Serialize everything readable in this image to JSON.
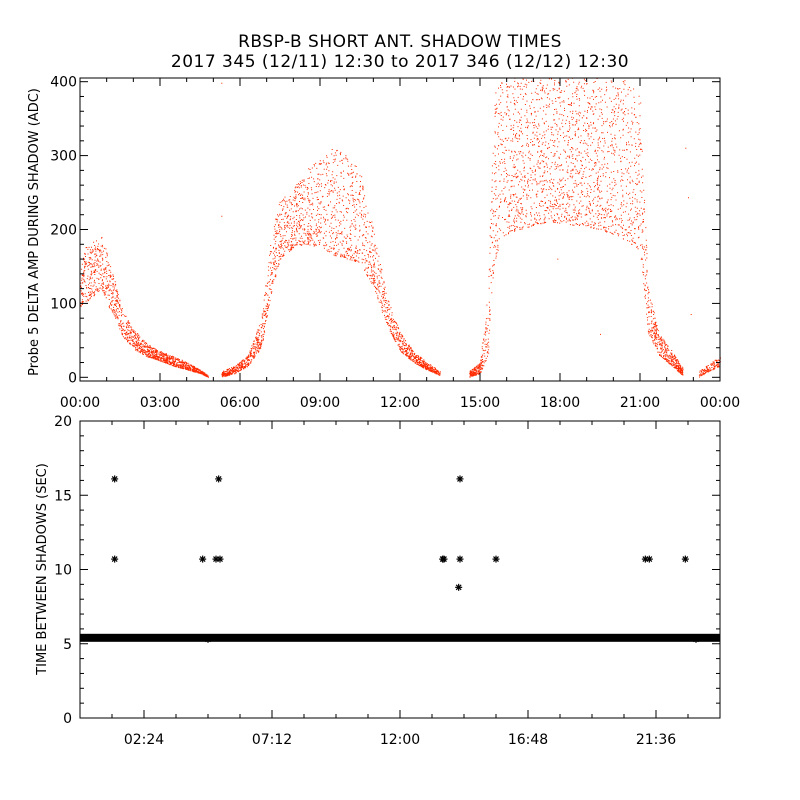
{
  "header": {
    "title_line1": "RBSP-B SHORT ANT. SHADOW TIMES",
    "title_line2": "2017 345 (12/11) 12:30 to 2017 346 (12/12) 12:30"
  },
  "colors": {
    "top_series": "#ff2a00",
    "bottom_series": "#000000",
    "axes": "#000000"
  },
  "chart_data": [
    {
      "type": "scatter",
      "title": "RBSP-B SHORT ANT. SHADOW TIMES",
      "ylabel": "Probe 5 DELTA AMP DURING SHADOW (ADC)",
      "xlabel": "",
      "xlim": [
        0,
        24
      ],
      "ylim": [
        -5,
        405
      ],
      "xticks": [
        0,
        3,
        6,
        9,
        12,
        15,
        18,
        21,
        24
      ],
      "xtick_labels": [
        "00:00",
        "03:00",
        "06:00",
        "09:00",
        "12:00",
        "15:00",
        "18:00",
        "21:00",
        "00:00"
      ],
      "yticks": [
        0,
        100,
        200,
        300,
        400
      ],
      "ytick_labels": [
        "0",
        "100",
        "200",
        "300",
        "400"
      ],
      "series": [
        {
          "name": "Probe 5 delta amp",
          "envelope_lower": [
            [
              0,
              95
            ],
            [
              0.5,
              110
            ],
            [
              0.8,
              120
            ],
            [
              1.0,
              100
            ],
            [
              1.3,
              80
            ],
            [
              1.6,
              55
            ],
            [
              2.0,
              38
            ],
            [
              2.5,
              28
            ],
            [
              3.0,
              22
            ],
            [
              3.5,
              15
            ],
            [
              4.0,
              10
            ],
            [
              4.5,
              5
            ],
            [
              4.8,
              0
            ]
          ],
          "envelope_upper": [
            [
              0,
              170
            ],
            [
              0.5,
              185
            ],
            [
              0.8,
              190
            ],
            [
              1.0,
              170
            ],
            [
              1.3,
              130
            ],
            [
              1.6,
              90
            ],
            [
              2.0,
              65
            ],
            [
              2.5,
              45
            ],
            [
              3.0,
              35
            ],
            [
              3.5,
              28
            ],
            [
              4.0,
              20
            ],
            [
              4.5,
              10
            ],
            [
              4.8,
              2
            ]
          ],
          "envelope_lower_2": [
            [
              5.3,
              0
            ],
            [
              5.8,
              5
            ],
            [
              6.3,
              15
            ],
            [
              6.8,
              40
            ],
            [
              7.2,
              120
            ],
            [
              7.5,
              160
            ],
            [
              8.0,
              175
            ],
            [
              8.5,
              180
            ],
            [
              9.0,
              175
            ],
            [
              9.5,
              165
            ],
            [
              10.0,
              160
            ],
            [
              10.5,
              155
            ],
            [
              11.0,
              120
            ],
            [
              11.5,
              70
            ],
            [
              12.0,
              35
            ],
            [
              12.5,
              20
            ],
            [
              13.0,
              10
            ],
            [
              13.5,
              2
            ]
          ],
          "envelope_upper_2": [
            [
              5.3,
              8
            ],
            [
              5.8,
              15
            ],
            [
              6.3,
              30
            ],
            [
              6.8,
              80
            ],
            [
              7.2,
              200
            ],
            [
              7.5,
              240
            ],
            [
              8.0,
              255
            ],
            [
              8.5,
              280
            ],
            [
              9.0,
              300
            ],
            [
              9.5,
              310
            ],
            [
              10.0,
              300
            ],
            [
              10.5,
              280
            ],
            [
              11.0,
              200
            ],
            [
              11.5,
              110
            ],
            [
              12.0,
              60
            ],
            [
              12.5,
              35
            ],
            [
              13.0,
              20
            ],
            [
              13.5,
              8
            ]
          ],
          "envelope_lower_3": [
            [
              14.6,
              0
            ],
            [
              15.0,
              5
            ],
            [
              15.3,
              30
            ],
            [
              15.5,
              150
            ],
            [
              15.8,
              190
            ],
            [
              16.5,
              200
            ],
            [
              17.5,
              210
            ],
            [
              18.5,
              205
            ],
            [
              19.5,
              200
            ],
            [
              20.5,
              185
            ],
            [
              21.0,
              170
            ],
            [
              21.3,
              60
            ],
            [
              21.7,
              30
            ],
            [
              22.2,
              15
            ],
            [
              22.6,
              2
            ]
          ],
          "envelope_upper_3": [
            [
              14.6,
              8
            ],
            [
              15.0,
              20
            ],
            [
              15.3,
              120
            ],
            [
              15.5,
              380
            ],
            [
              15.8,
              405
            ],
            [
              16.5,
              405
            ],
            [
              17.5,
              405
            ],
            [
              18.5,
              405
            ],
            [
              19.5,
              405
            ],
            [
              20.5,
              405
            ],
            [
              21.0,
              380
            ],
            [
              21.3,
              120
            ],
            [
              21.7,
              60
            ],
            [
              22.2,
              35
            ],
            [
              22.6,
              12
            ]
          ],
          "envelope_lower_4": [
            [
              23.2,
              0
            ],
            [
              23.6,
              8
            ],
            [
              24.0,
              15
            ]
          ],
          "envelope_upper_4": [
            [
              23.2,
              8
            ],
            [
              23.6,
              18
            ],
            [
              24.0,
              28
            ]
          ],
          "outliers": [
            [
              5.3,
              398
            ],
            [
              5.3,
              218
            ],
            [
              10.5,
              265
            ],
            [
              10.8,
              148
            ],
            [
              22.7,
              310
            ],
            [
              22.8,
              243
            ],
            [
              22.9,
              85
            ],
            [
              19.5,
              58
            ],
            [
              12.0,
              40
            ],
            [
              17.9,
              160
            ]
          ]
        }
      ]
    },
    {
      "type": "scatter",
      "ylabel": "TIME BETWEEN SHADOWS (SEC)",
      "xlabel": "",
      "xlim": [
        0,
        24
      ],
      "ylim": [
        0,
        20
      ],
      "xticks": [
        2.4,
        7.2,
        12.0,
        16.8,
        21.6
      ],
      "xtick_labels": [
        "02:24",
        "07:12",
        "12:00",
        "16:48",
        "21:36"
      ],
      "yticks": [
        0,
        5,
        10,
        15,
        20
      ],
      "ytick_labels": [
        "0",
        "5",
        "10",
        "15",
        "20"
      ],
      "series": [
        {
          "name": "Time between shadows",
          "baseline_value": 5.4,
          "baseline_range": [
            0,
            24
          ],
          "points": [
            [
              1.3,
              16.1
            ],
            [
              1.3,
              10.7
            ],
            [
              4.6,
              10.7
            ],
            [
              5.1,
              10.7
            ],
            [
              5.2,
              16.1
            ],
            [
              5.25,
              10.7
            ],
            [
              4.8,
              5.3
            ],
            [
              13.6,
              10.7
            ],
            [
              13.65,
              10.7
            ],
            [
              14.25,
              16.1
            ],
            [
              14.25,
              10.7
            ],
            [
              14.2,
              8.8
            ],
            [
              15.6,
              10.7
            ],
            [
              21.2,
              10.7
            ],
            [
              21.35,
              10.7
            ],
            [
              22.7,
              10.7
            ],
            [
              23.1,
              5.3
            ]
          ]
        }
      ]
    }
  ]
}
